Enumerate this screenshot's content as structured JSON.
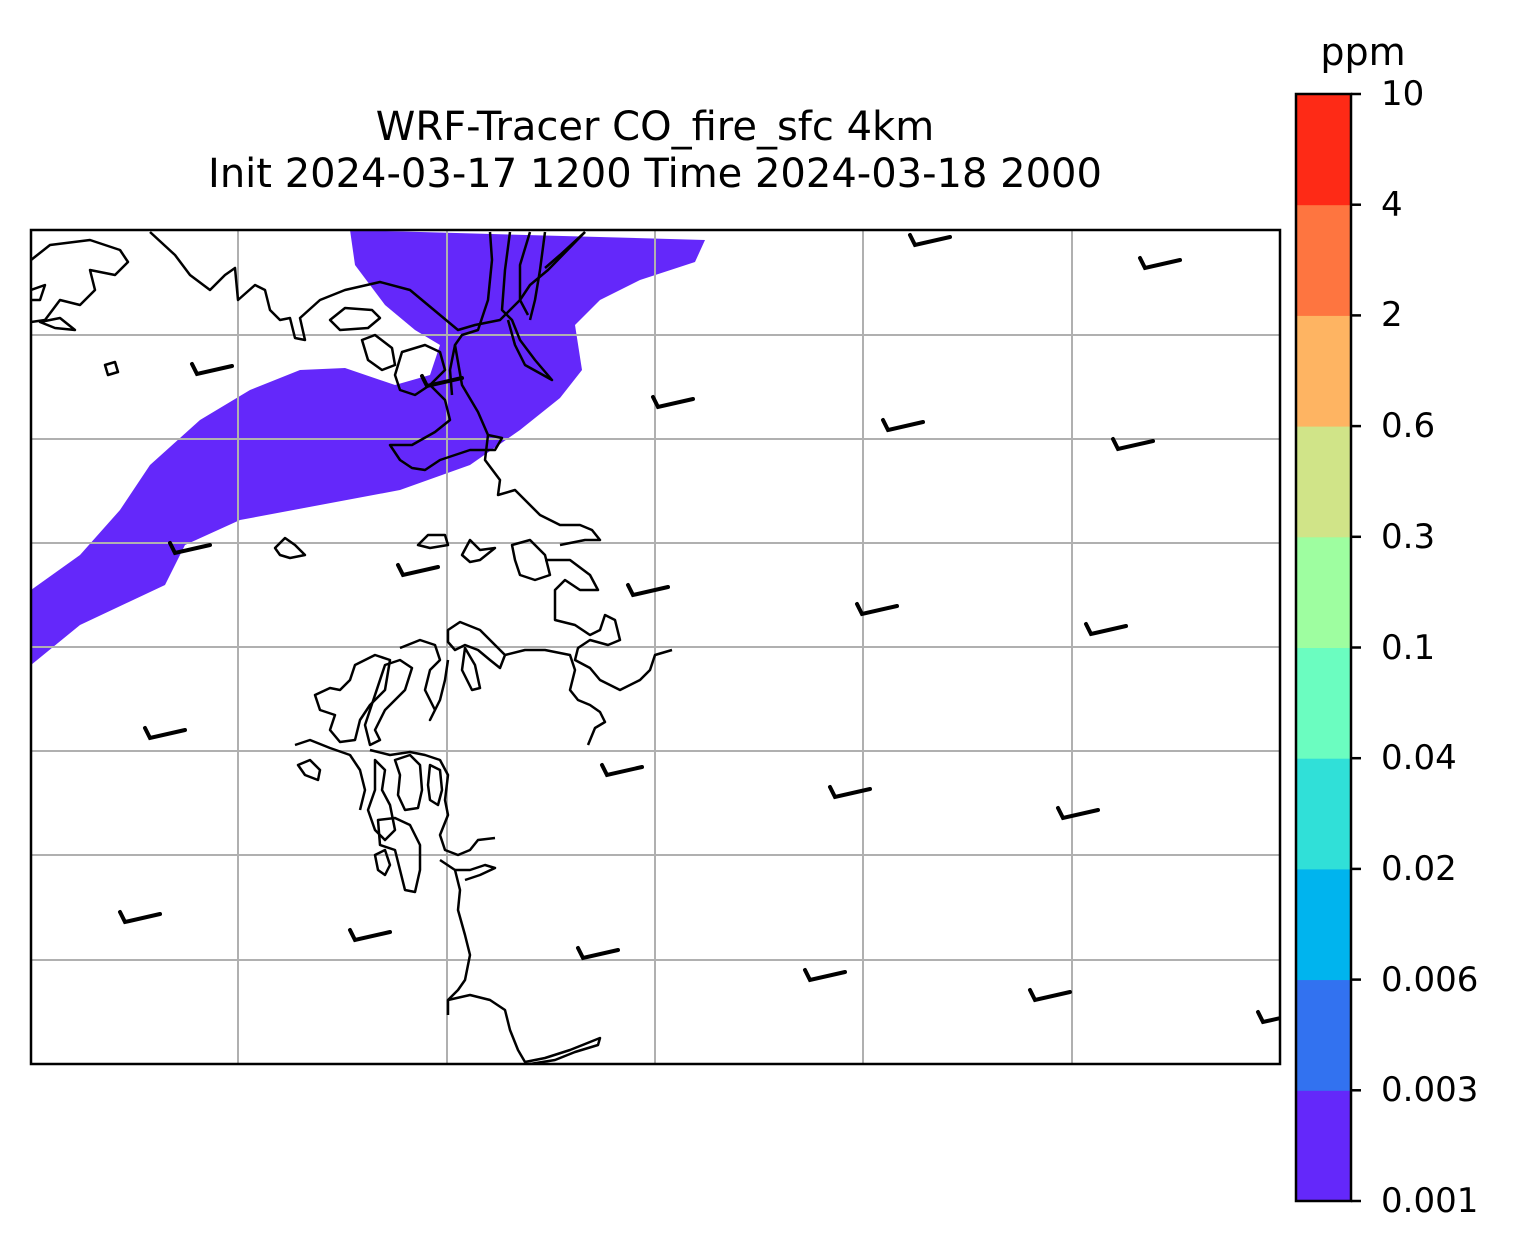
{
  "title": {
    "line1": "WRF-Tracer CO_fire_sfc 4km",
    "line2": "Init 2024-03-17 1200 Time 2024-03-18 2000"
  },
  "colorbar": {
    "unit": "ppm",
    "levels": [
      "0.001",
      "0.003",
      "0.006",
      "0.02",
      "0.04",
      "0.1",
      "0.3",
      "0.6",
      "2",
      "4",
      "10"
    ],
    "colors": [
      "#6428fa",
      "#3272f0",
      "#00b4ee",
      "#30e0d8",
      "#6bfdc0",
      "#9efea0",
      "#d0e488",
      "#feb462",
      "#fe7540",
      "#fe2a16"
    ]
  },
  "map": {
    "plume_color": "#6428fa",
    "gridline_color": "#b0b0b0",
    "coastline_color": "#000000"
  }
}
